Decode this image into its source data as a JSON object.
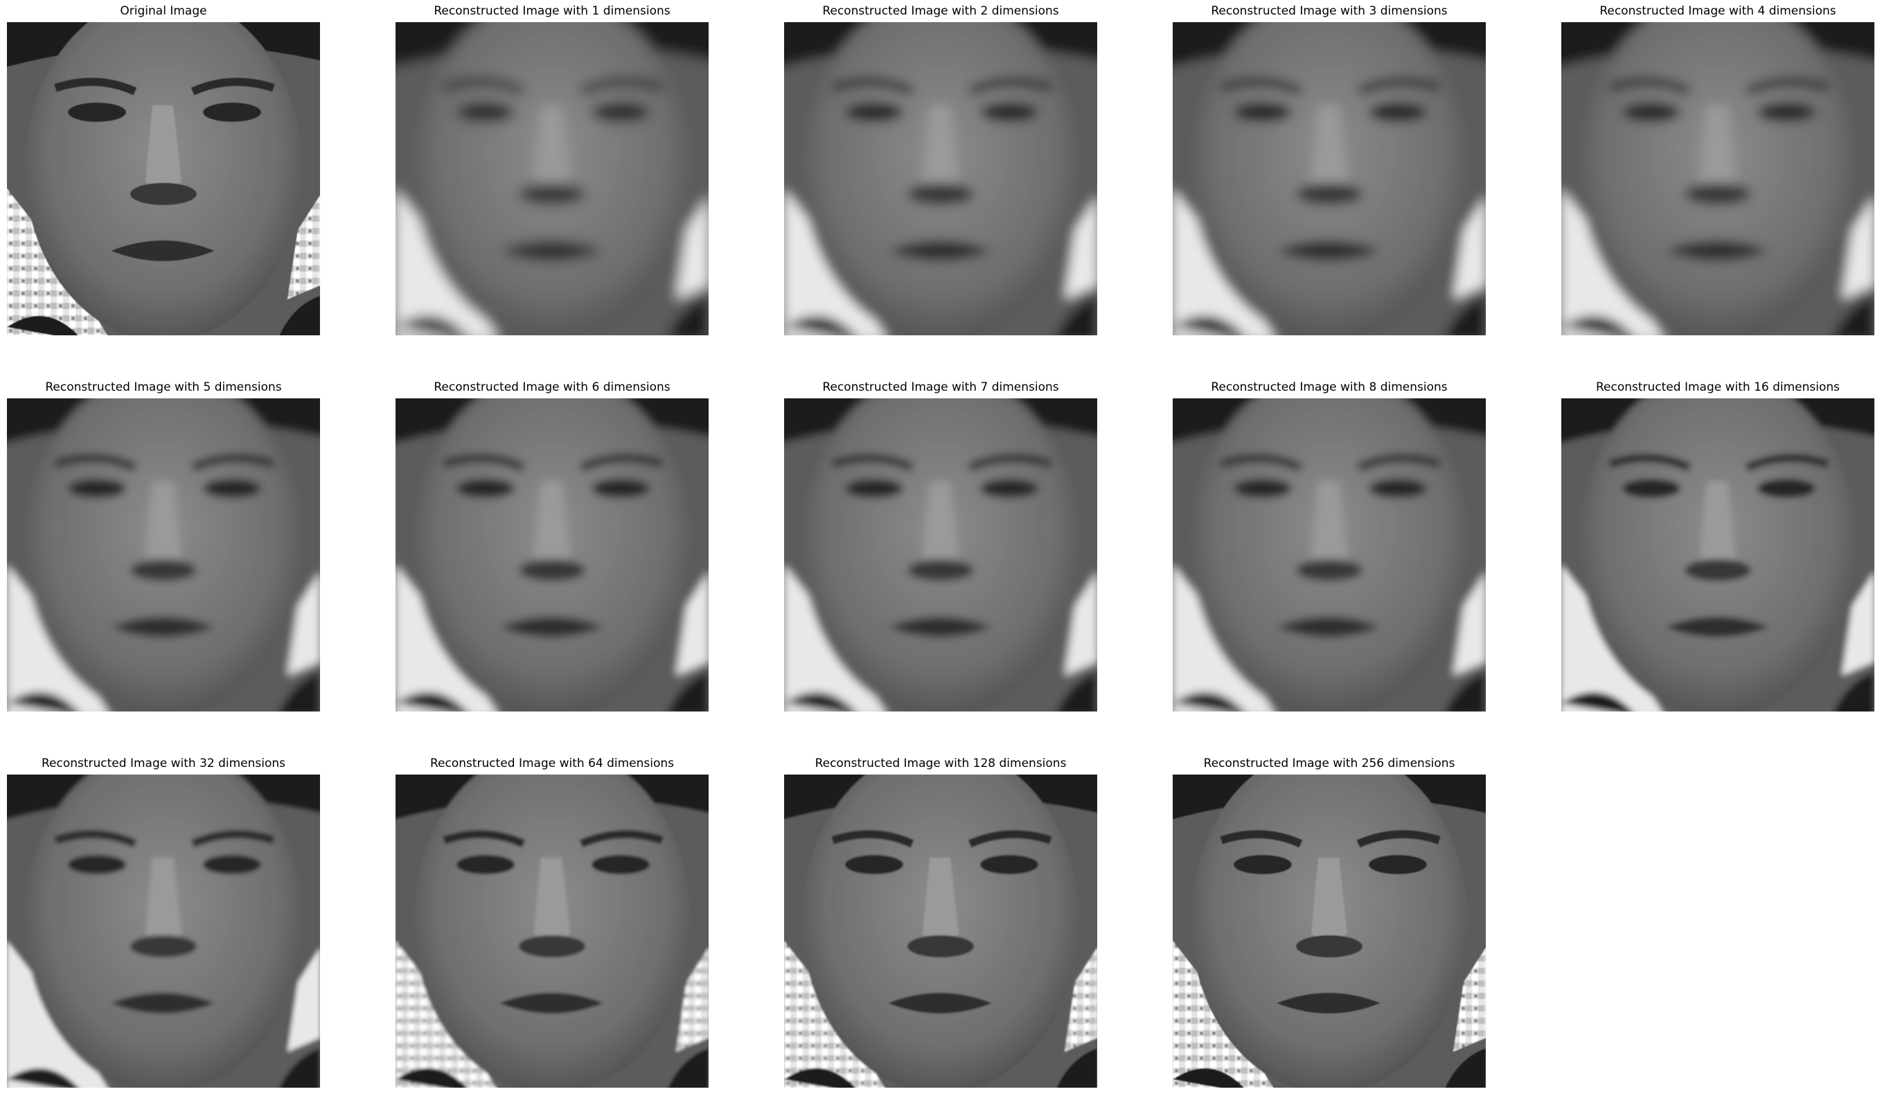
{
  "figure": {
    "panels": [
      {
        "title": "Original Image",
        "dimensions": null
      },
      {
        "title": "Reconstructed Image with 1 dimensions",
        "dimensions": 1
      },
      {
        "title": "Reconstructed Image with 2 dimensions",
        "dimensions": 2
      },
      {
        "title": "Reconstructed Image with 3 dimensions",
        "dimensions": 3
      },
      {
        "title": "Reconstructed Image with 4 dimensions",
        "dimensions": 4
      },
      {
        "title": "Reconstructed Image with 5 dimensions",
        "dimensions": 5
      },
      {
        "title": "Reconstructed Image with 6 dimensions",
        "dimensions": 6
      },
      {
        "title": "Reconstructed Image with 7 dimensions",
        "dimensions": 7
      },
      {
        "title": "Reconstructed Image with 8 dimensions",
        "dimensions": 8
      },
      {
        "title": "Reconstructed Image with 16 dimensions",
        "dimensions": 16
      },
      {
        "title": "Reconstructed Image with 32 dimensions",
        "dimensions": 32
      },
      {
        "title": "Reconstructed Image with 64 dimensions",
        "dimensions": 64
      },
      {
        "title": "Reconstructed Image with 128 dimensions",
        "dimensions": 128
      },
      {
        "title": "Reconstructed Image with 256 dimensions",
        "dimensions": 256
      }
    ]
  },
  "colors": {
    "background": "#ffffff",
    "title_text": "#000000"
  }
}
